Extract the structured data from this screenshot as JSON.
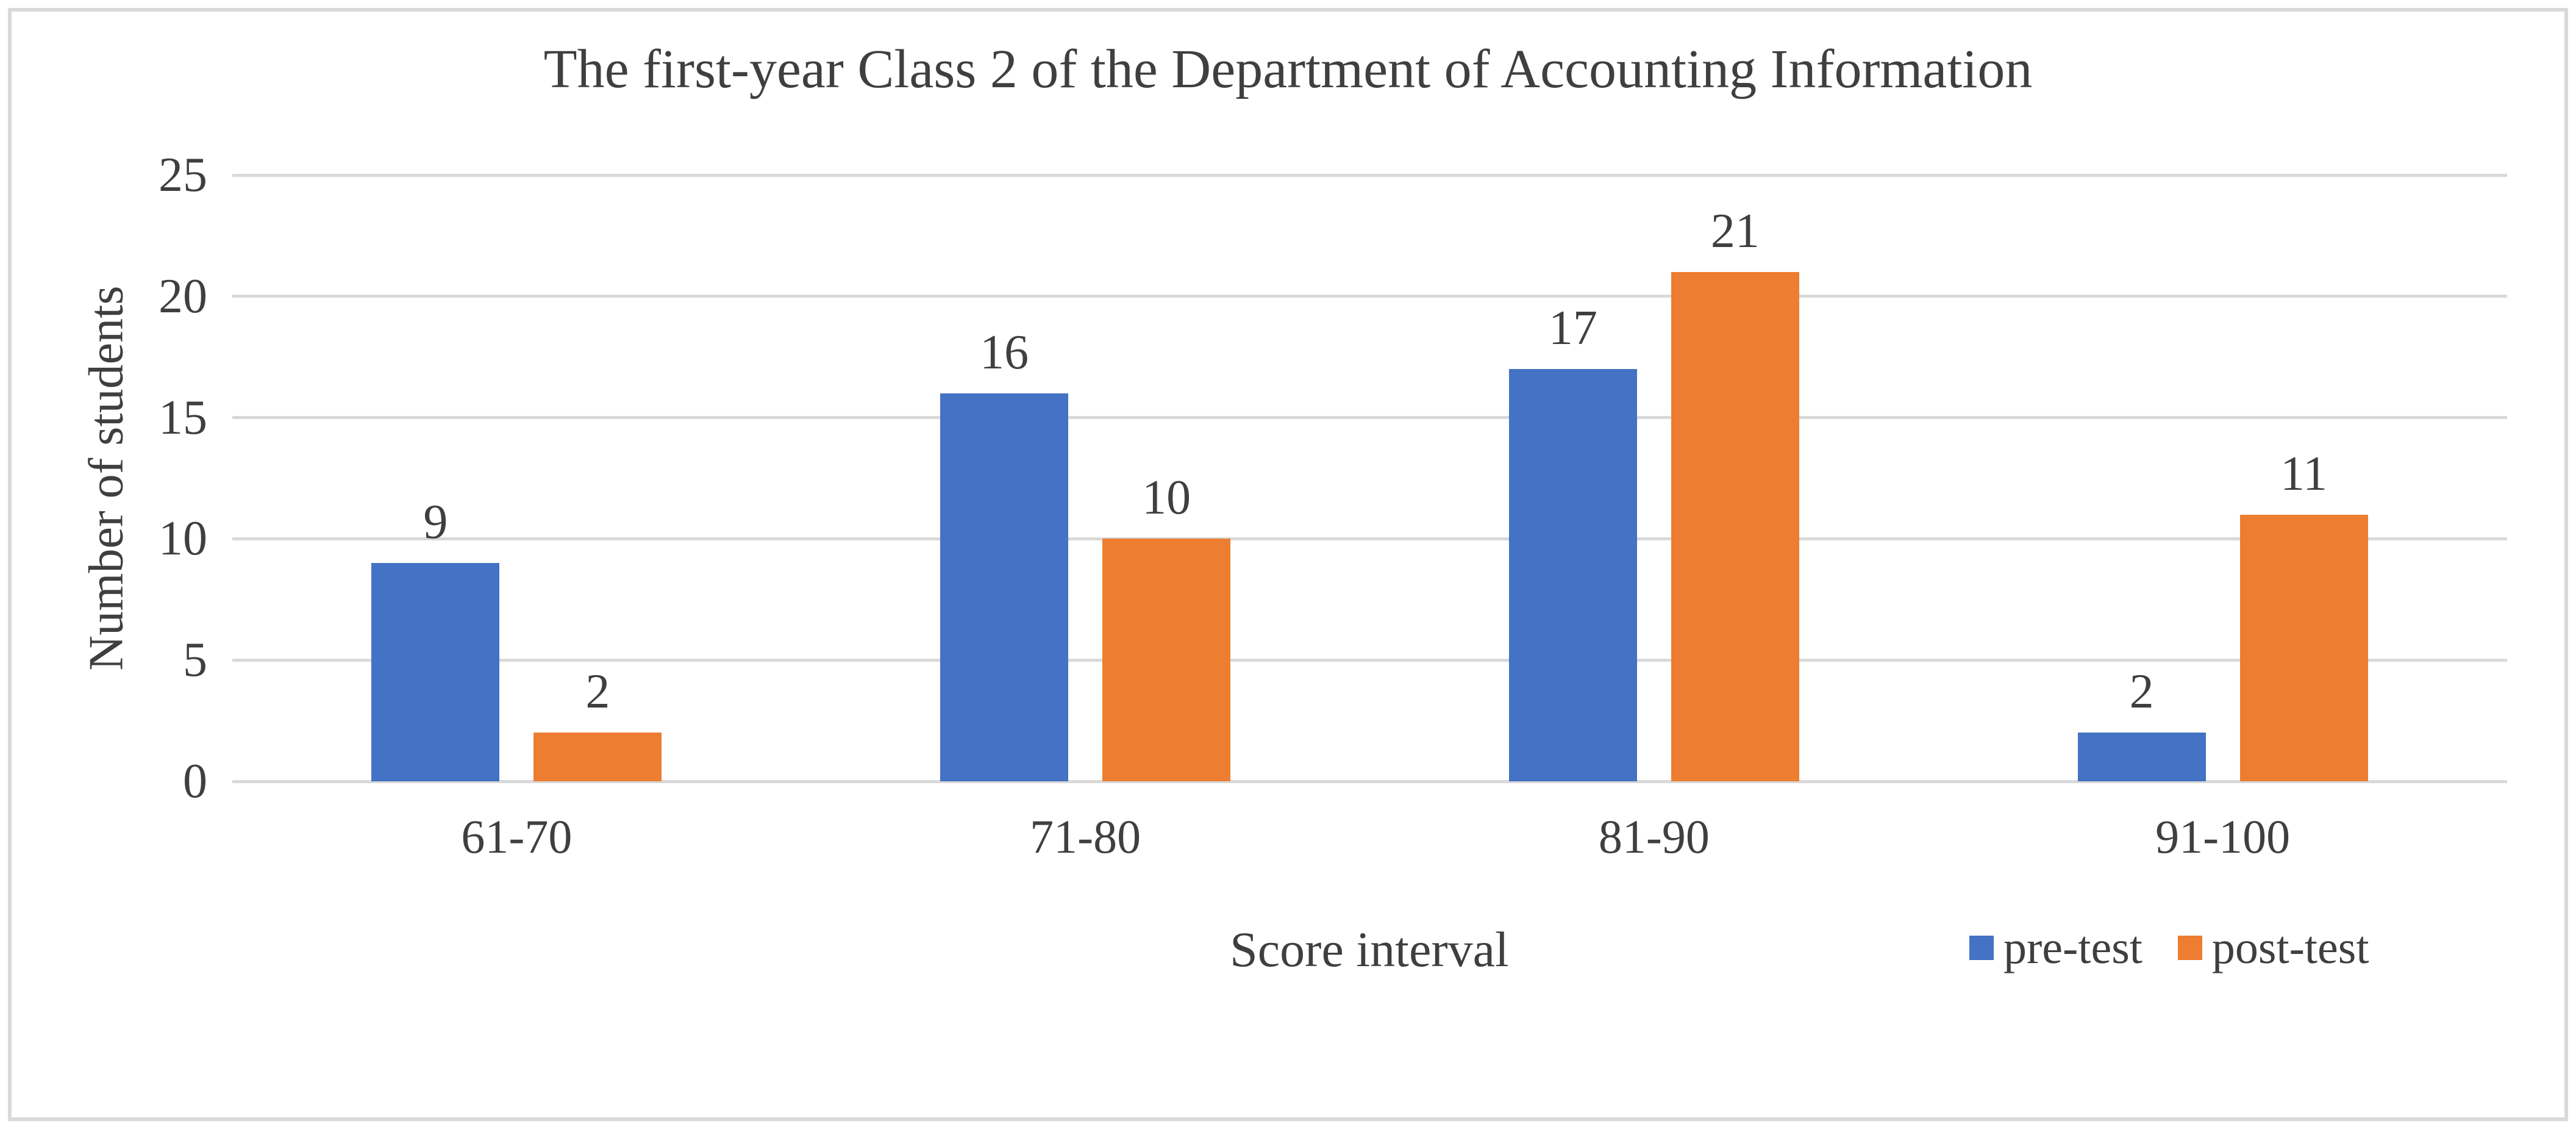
{
  "chart_data": {
    "type": "bar",
    "title": "The first-year Class 2 of the Department of Accounting Information",
    "xlabel": "Score interval",
    "ylabel": "Number of students",
    "categories": [
      "61-70",
      "71-80",
      "81-90",
      "91-100"
    ],
    "series": [
      {
        "name": "pre-test",
        "color": "#4472C4",
        "values": [
          9,
          16,
          17,
          2
        ]
      },
      {
        "name": "post-test",
        "color": "#ED7D31",
        "values": [
          2,
          10,
          21,
          11
        ]
      }
    ],
    "ylim": [
      0,
      25
    ],
    "yticks": [
      0,
      5,
      10,
      15,
      20,
      25
    ],
    "grid": true,
    "bar_value_labels": true,
    "legend_position": "bottom-right",
    "colors": {
      "text": "#3F3F3F",
      "gridline": "#D9D9D9",
      "border": "#D9D9D9",
      "background": "#FFFFFF"
    }
  }
}
